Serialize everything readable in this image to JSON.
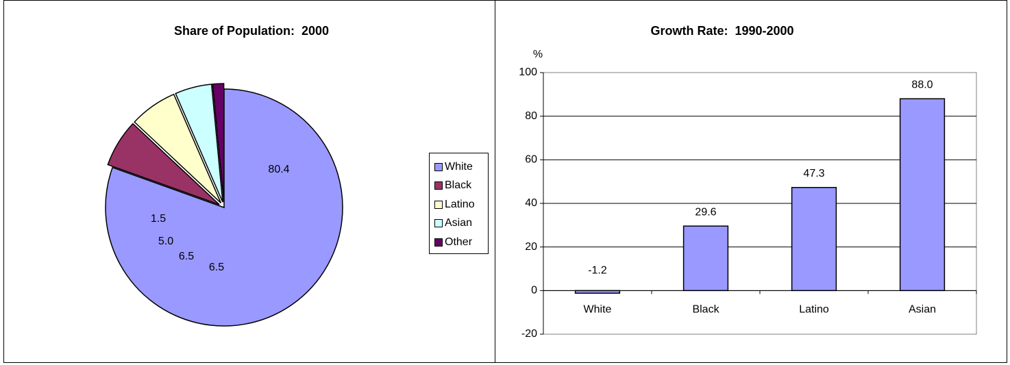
{
  "chart_data": [
    {
      "type": "pie",
      "title": "Share of Population:  2000",
      "categories": [
        "White",
        "Black",
        "Latino",
        "Asian",
        "Other"
      ],
      "values": [
        80.4,
        6.5,
        6.5,
        5.0,
        1.5
      ],
      "value_labels": [
        "80.4",
        "6.5",
        "6.5",
        "5.0",
        "1.5"
      ],
      "colors": [
        "#9999FF",
        "#993366",
        "#FFFFCC",
        "#CCFFFF",
        "#660066"
      ],
      "exploded": true,
      "legend": {
        "position": "right"
      }
    },
    {
      "type": "bar",
      "title": "Growth Rate:  1990-2000",
      "categories": [
        "White",
        "Black",
        "Latino",
        "Asian"
      ],
      "values": [
        -1.2,
        29.6,
        47.3,
        88.0
      ],
      "value_labels": [
        "-1.2",
        "29.6",
        "47.3",
        "88.0"
      ],
      "ylabel": "%",
      "ylim": [
        -20,
        100
      ],
      "yticks": [
        -20,
        0,
        20,
        40,
        60,
        80,
        100
      ],
      "bar_color": "#9999FF",
      "grid": true
    }
  ]
}
